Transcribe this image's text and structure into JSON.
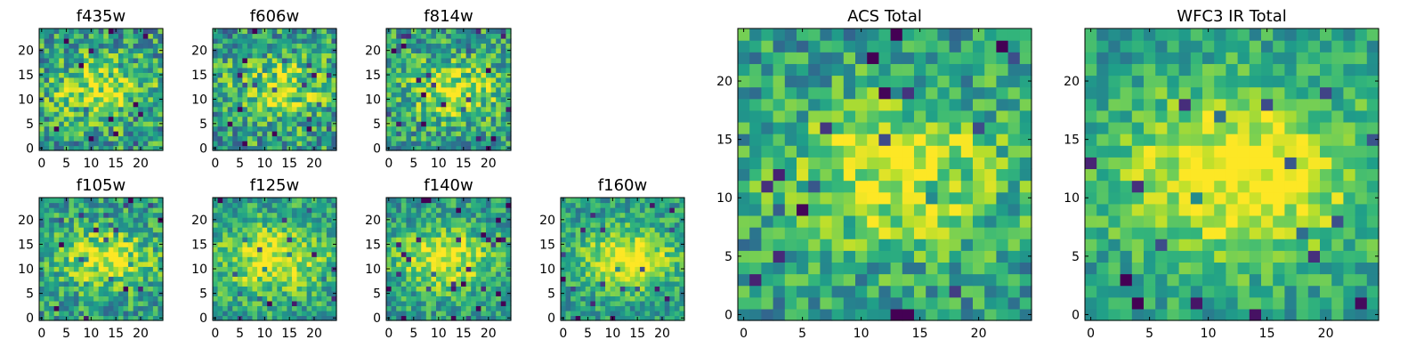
{
  "chart_data": [
    {
      "type": "heatmap",
      "title": "f435w",
      "grid": "off",
      "colormap": "viridis",
      "xlim": [
        -0.5,
        24.5
      ],
      "ylim": [
        -0.5,
        24.5
      ],
      "xticks": [
        0,
        5,
        10,
        15,
        20
      ],
      "yticks": [
        0,
        5,
        10,
        15,
        20
      ],
      "xtick_labels": [
        "0",
        "5",
        "10",
        "15",
        "20"
      ],
      "ytick_labels": [
        "0",
        "5",
        "10",
        "15",
        "20"
      ],
      "size": [
        25,
        25
      ],
      "noise": 0.3,
      "peak": 0.35,
      "center": [
        12,
        12
      ],
      "width": 5,
      "seed": 11
    },
    {
      "type": "heatmap",
      "title": "f606w",
      "grid": "off",
      "colormap": "viridis",
      "xlim": [
        -0.5,
        24.5
      ],
      "ylim": [
        -0.5,
        24.5
      ],
      "xticks": [
        0,
        5,
        10,
        15,
        20
      ],
      "yticks": [
        0,
        5,
        10,
        15,
        20
      ],
      "xtick_labels": [
        "0",
        "5",
        "10",
        "15",
        "20"
      ],
      "ytick_labels": [
        "0",
        "5",
        "10",
        "15",
        "20"
      ],
      "size": [
        25,
        25
      ],
      "noise": 0.3,
      "peak": 0.35,
      "center": [
        13,
        12
      ],
      "width": 5,
      "seed": 23
    },
    {
      "type": "heatmap",
      "title": "f814w",
      "grid": "off",
      "colormap": "viridis",
      "xlim": [
        -0.5,
        24.5
      ],
      "ylim": [
        -0.5,
        24.5
      ],
      "xticks": [
        0,
        5,
        10,
        15,
        20
      ],
      "yticks": [
        0,
        5,
        10,
        15,
        20
      ],
      "xtick_labels": [
        "0",
        "5",
        "10",
        "15",
        "20"
      ],
      "ytick_labels": [
        "0",
        "5",
        "10",
        "15",
        "20"
      ],
      "size": [
        25,
        25
      ],
      "noise": 0.28,
      "peak": 0.38,
      "center": [
        13,
        12
      ],
      "width": 5,
      "seed": 37
    },
    {
      "type": "heatmap",
      "title": "f105w",
      "grid": "off",
      "colormap": "viridis",
      "xlim": [
        -0.5,
        24.5
      ],
      "ylim": [
        -0.5,
        24.5
      ],
      "xticks": [
        0,
        5,
        10,
        15,
        20
      ],
      "yticks": [
        0,
        5,
        10,
        15,
        20
      ],
      "xtick_labels": [
        "0",
        "5",
        "10",
        "15",
        "20"
      ],
      "ytick_labels": [
        "0",
        "5",
        "10",
        "15",
        "20"
      ],
      "size": [
        25,
        25
      ],
      "noise": 0.25,
      "peak": 0.4,
      "center": [
        13,
        12
      ],
      "width": 5,
      "seed": 41
    },
    {
      "type": "heatmap",
      "title": "f125w",
      "grid": "off",
      "colormap": "viridis",
      "xlim": [
        -0.5,
        24.5
      ],
      "ylim": [
        -0.5,
        24.5
      ],
      "xticks": [
        0,
        5,
        10,
        15,
        20
      ],
      "yticks": [
        0,
        5,
        10,
        15,
        20
      ],
      "xtick_labels": [
        "0",
        "5",
        "10",
        "15",
        "20"
      ],
      "ytick_labels": [
        "0",
        "5",
        "10",
        "15",
        "20"
      ],
      "size": [
        25,
        25
      ],
      "noise": 0.22,
      "peak": 0.42,
      "center": [
        12,
        12
      ],
      "width": 6,
      "seed": 53
    },
    {
      "type": "heatmap",
      "title": "f140w",
      "grid": "off",
      "colormap": "viridis",
      "xlim": [
        -0.5,
        24.5
      ],
      "ylim": [
        -0.5,
        24.5
      ],
      "xticks": [
        0,
        5,
        10,
        15,
        20
      ],
      "yticks": [
        0,
        5,
        10,
        15,
        20
      ],
      "xtick_labels": [
        "0",
        "5",
        "10",
        "15",
        "20"
      ],
      "ytick_labels": [
        "0",
        "5",
        "10",
        "15",
        "20"
      ],
      "size": [
        25,
        25
      ],
      "noise": 0.22,
      "peak": 0.45,
      "center": [
        11,
        12
      ],
      "width": 5,
      "seed": 67
    },
    {
      "type": "heatmap",
      "title": "f160w",
      "grid": "off",
      "colormap": "viridis",
      "xlim": [
        -0.5,
        24.5
      ],
      "ylim": [
        -0.5,
        24.5
      ],
      "xticks": [
        0,
        5,
        10,
        15,
        20
      ],
      "yticks": [
        0,
        5,
        10,
        15,
        20
      ],
      "xtick_labels": [
        "0",
        "5",
        "10",
        "15",
        "20"
      ],
      "ytick_labels": [
        "0",
        "5",
        "10",
        "15",
        "20"
      ],
      "size": [
        25,
        25
      ],
      "noise": 0.2,
      "peak": 0.48,
      "center": [
        13,
        12
      ],
      "width": 5,
      "seed": 79
    },
    {
      "type": "heatmap",
      "title": "ACS Total",
      "grid": "off",
      "colormap": "viridis",
      "xlim": [
        -0.5,
        24.5
      ],
      "ylim": [
        -0.5,
        24.5
      ],
      "xticks": [
        0,
        5,
        10,
        15,
        20
      ],
      "yticks": [
        0,
        5,
        10,
        15,
        20
      ],
      "xtick_labels": [
        "0",
        "5",
        "10",
        "15",
        "20"
      ],
      "ytick_labels": [
        "0",
        "5",
        "10",
        "15",
        "20"
      ],
      "size": [
        25,
        25
      ],
      "noise": 0.24,
      "peak": 0.42,
      "center": [
        13,
        12
      ],
      "width": 5,
      "seed": 97
    },
    {
      "type": "heatmap",
      "title": "WFC3 IR Total",
      "grid": "off",
      "colormap": "viridis",
      "xlim": [
        -0.5,
        24.5
      ],
      "ylim": [
        -0.5,
        24.5
      ],
      "xticks": [
        0,
        5,
        10,
        15,
        20
      ],
      "yticks": [
        0,
        5,
        10,
        15,
        20
      ],
      "xtick_labels": [
        "0",
        "5",
        "10",
        "15",
        "20"
      ],
      "ytick_labels": [
        "0",
        "5",
        "10",
        "15",
        "20"
      ],
      "size": [
        25,
        25
      ],
      "noise": 0.18,
      "peak": 0.5,
      "center": [
        13,
        12
      ],
      "width": 6,
      "seed": 131
    }
  ]
}
